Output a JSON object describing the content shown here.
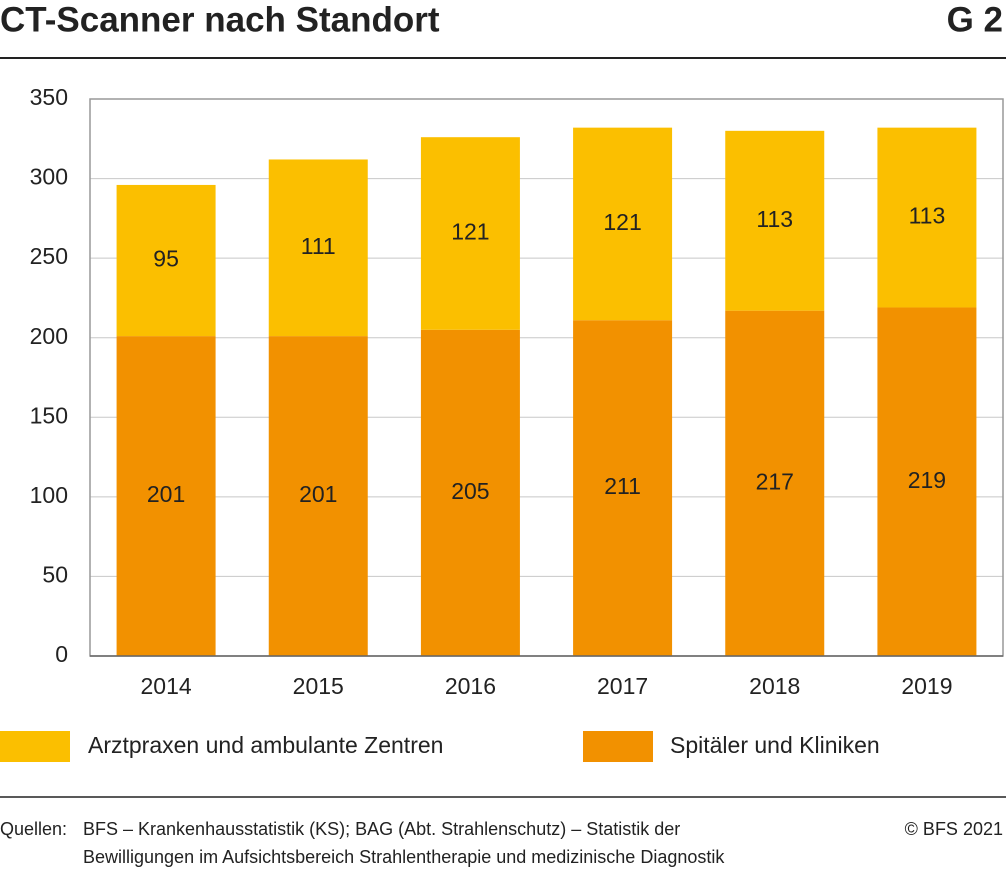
{
  "chart_data": {
    "type": "bar",
    "stacked": true,
    "title": "CT-Scanner nach Standort",
    "badge": "G 2",
    "categories": [
      "2014",
      "2015",
      "2016",
      "2017",
      "2018",
      "2019"
    ],
    "series": [
      {
        "name": "Spitäler und Kliniken",
        "color": "#f29100",
        "values": [
          201,
          201,
          205,
          211,
          217,
          219
        ]
      },
      {
        "name": "Arztpraxen und ambulante Zentren",
        "color": "#fbbf00",
        "values": [
          95,
          111,
          121,
          121,
          113,
          113
        ]
      }
    ],
    "ylim": [
      0,
      350
    ],
    "yticks": [
      0,
      50,
      100,
      150,
      200,
      250,
      300,
      350
    ],
    "grid": true,
    "source_label": "Quellen:",
    "source_lines": [
      "BFS – Krankenhausstatistik (KS); BAG (Abt. Strahlenschutz) – Statistik der",
      "Bewilligungen im Aufsichtsbereich Strahlentherapie und medizinische Diagnostik"
    ],
    "copyright": "© BFS 2021"
  }
}
